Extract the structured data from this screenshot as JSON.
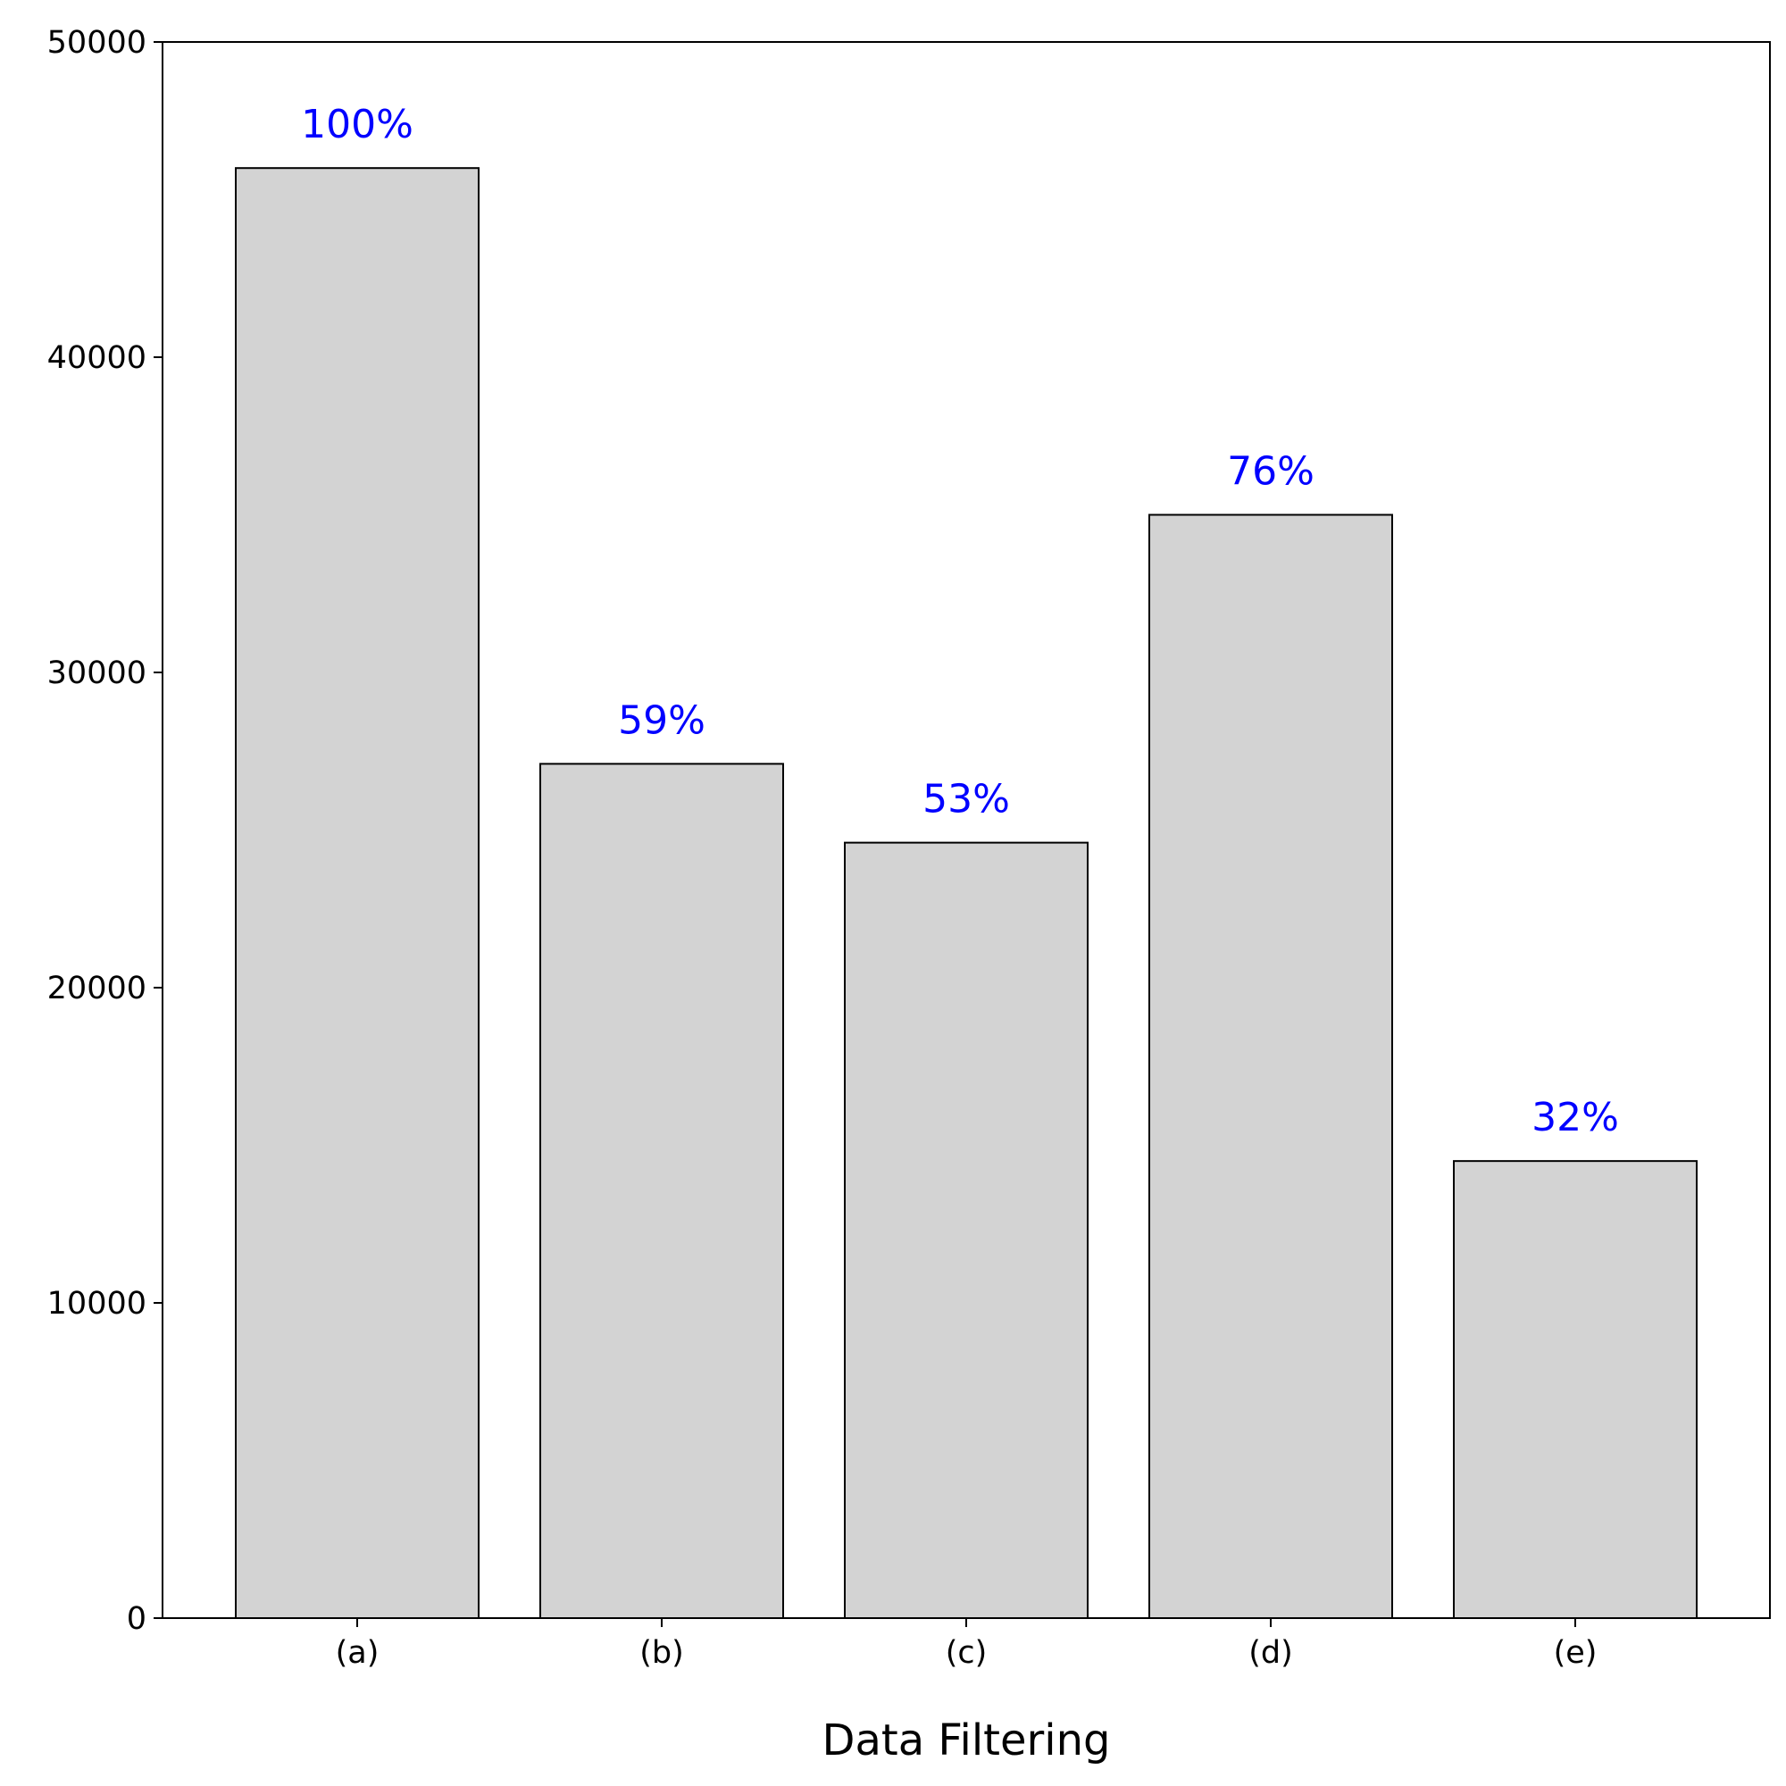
{
  "chart_data": {
    "type": "bar",
    "title": "",
    "xlabel": "Data Filtering",
    "ylabel": "",
    "categories": [
      "(a)",
      "(b)",
      "(c)",
      "(d)",
      "(e)"
    ],
    "values": [
      46000,
      27100,
      24600,
      35000,
      14500
    ],
    "data_labels": [
      "100%",
      "59%",
      "53%",
      "76%",
      "32%"
    ],
    "ylim": [
      0,
      50000
    ],
    "yticks": [
      0,
      10000,
      20000,
      30000,
      40000,
      50000
    ],
    "ytick_labels": [
      "0",
      "10000",
      "20000",
      "30000",
      "40000",
      "50000"
    ],
    "grid": false,
    "legend": "none",
    "colors": {
      "bar_fill": "#d3d3d3",
      "bar_edge": "#000000",
      "data_label": "#0000ff",
      "axis": "#000000"
    }
  }
}
